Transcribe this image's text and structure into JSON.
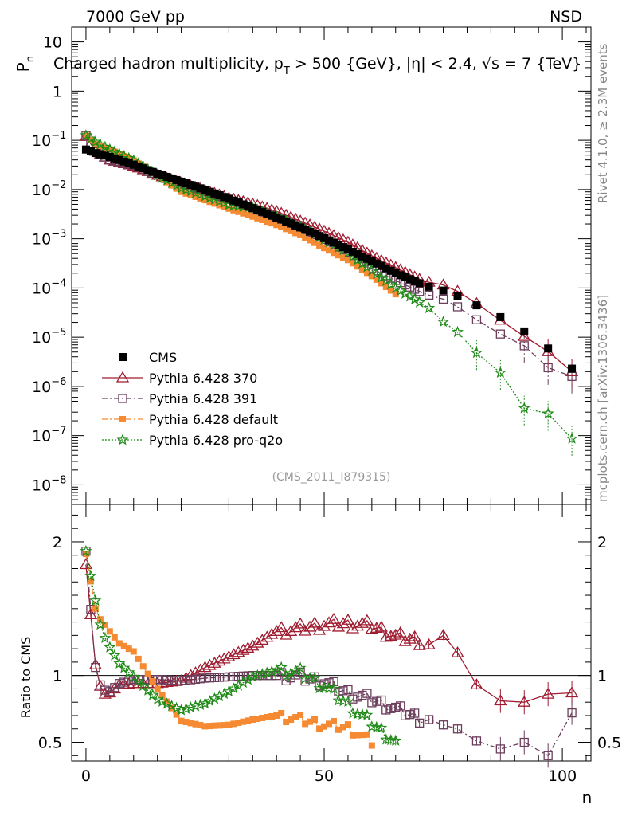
{
  "header": {
    "left": "7000 GeV pp",
    "right": "NSD"
  },
  "side": {
    "rivet": "Rivet 4.1.0, ≥ 2.3M events",
    "mcplots": "mcplots.cern.ch [arXiv:1306.3436]"
  },
  "colors": {
    "cms": "#000000",
    "p370": "#a01c30",
    "p391": "#6b3e5c",
    "default": "#f58a32",
    "proq2o": "#1e8a16"
  },
  "chart_data": [
    {
      "type": "scatter",
      "title": "Charged hadron multiplicity, p_T > 500 {GeV}, |η| < 2.4, √s = 7 {TeV}",
      "title_parts": {
        "pre": "Charged hadron multiplicity, p",
        "sub": "T",
        "post": " > 500 {GeV}, |η| < 2.4, √s = 7 {TeV}"
      },
      "ylabel": "P_n",
      "ylabel_parts": {
        "main": "P",
        "sub": "n"
      },
      "xlabel": "",
      "yscale": "log",
      "ylim": [
        4e-09,
        20
      ],
      "xlim": [
        -3,
        106
      ],
      "ytick_labels": [
        {
          "exp": -8,
          "label": "10",
          "sup": "−8"
        },
        {
          "exp": -7,
          "label": "10",
          "sup": "−7"
        },
        {
          "exp": -6,
          "label": "10",
          "sup": "−6"
        },
        {
          "exp": -5,
          "label": "10",
          "sup": "−5"
        },
        {
          "exp": -4,
          "label": "10",
          "sup": "−4"
        },
        {
          "exp": -3,
          "label": "10",
          "sup": "−3"
        },
        {
          "exp": -2,
          "label": "10",
          "sup": "−2"
        },
        {
          "exp": -1,
          "label": "10",
          "sup": "−1"
        },
        {
          "exp": 0,
          "label": "1",
          "sup": ""
        },
        {
          "exp": 1,
          "label": "10",
          "sup": ""
        }
      ],
      "annotation": "(CMS_2011_I879315)",
      "legend": {
        "position": "lower-left",
        "entries": [
          {
            "label": "CMS",
            "key": "cms"
          },
          {
            "label": "Pythia 6.428 370",
            "key": "p370"
          },
          {
            "label": "Pythia 6.428 391",
            "key": "p391"
          },
          {
            "label": "Pythia 6.428 default",
            "key": "default"
          },
          {
            "label": "Pythia 6.428 pro-q2o",
            "key": "proq2o"
          }
        ]
      },
      "anchor_x": [
        0,
        2,
        5,
        10,
        15,
        20,
        25,
        30,
        35,
        40,
        45,
        50,
        55,
        60,
        65,
        70,
        72,
        75,
        78,
        82,
        87,
        92,
        97,
        102
      ],
      "series": [
        {
          "name": "CMS",
          "key": "cms",
          "anchor_values": [
            0.065,
            0.055,
            0.046,
            0.032,
            0.021,
            0.0145,
            0.0098,
            0.0065,
            0.0042,
            0.0027,
            0.0017,
            0.00103,
            0.00061,
            0.00035,
            0.0002,
            0.000125,
            0.000106,
            8.86e-05,
            6.96e-05,
            4.45e-05,
            2.56e-05,
            1.31e-05,
            5.9e-06,
            2.3e-06
          ]
        },
        {
          "name": "Pythia 6.428 370",
          "key": "p370",
          "anchor_values": [
            0.12,
            0.06,
            0.04,
            0.03,
            0.0196,
            0.0135,
            0.0096,
            0.0067,
            0.0051,
            0.0036,
            0.00229,
            0.00143,
            0.00085,
            0.00045,
            0.00026,
            0.00015,
            0.000131,
            0.000115,
            8.55e-05,
            4.83e-05,
            2.22e-05,
            1.04e-05,
            5.1e-06,
            2e-06
          ]
        },
        {
          "name": "Pythia 6.428 391",
          "key": "p391",
          "anchor_values": [
            0.125,
            0.06,
            0.04,
            0.031,
            0.0197,
            0.0136,
            0.0093,
            0.0063,
            0.0041,
            0.0027,
            0.00168,
            0.00097,
            0.00053,
            0.00025,
            0.000142,
            8.5e-05,
            7.15e-05,
            5.93e-05,
            4.15e-05,
            2.26e-05,
            1.16e-05,
            6.7e-06,
            2.4e-06,
            1.6e-06
          ]
        },
        {
          "name": "Pythia 6.428 default",
          "key": "default",
          "anchor_values": [
            0.124,
            0.083,
            0.065,
            0.039,
            0.019,
            0.009,
            0.0061,
            0.0041,
            0.00283,
            0.00191,
            0.00119,
            0.00065,
            0.00037,
            0.000175,
            7.5e-05
          ]
        },
        {
          "name": "Pythia 6.428 pro-q2o",
          "key": "proq2o",
          "anchor_values": [
            0.126,
            0.093,
            0.065,
            0.039,
            0.0195,
            0.0107,
            0.0073,
            0.0049,
            0.0042,
            0.0028,
            0.00175,
            0.00096,
            0.00052,
            0.000225,
            0.0001,
            5.1e-05,
            3.9e-05,
            2.05e-05,
            1.27e-05,
            4.8e-06,
            1.9e-06,
            3.6e-07,
            2.8e-07,
            8.7e-08
          ]
        }
      ]
    },
    {
      "type": "scatter",
      "title": "",
      "xlabel": "n",
      "ylabel": "Ratio to CMS",
      "xlim": [
        -3,
        106
      ],
      "ylim": [
        0.36,
        2.28
      ],
      "xticks": [
        0,
        50,
        100
      ],
      "yticks": [
        0.5,
        1,
        2
      ],
      "reference_line": 1,
      "anchor_x": [
        0,
        2,
        3,
        4,
        5,
        7,
        10,
        15,
        20,
        25,
        30,
        35,
        40,
        45,
        50,
        55,
        60,
        65,
        70,
        72,
        75,
        78,
        82,
        87,
        92,
        97,
        102
      ],
      "series": [
        {
          "name": "Pythia 6.428 370",
          "key": "p370",
          "anchor_values": [
            1.83,
            1.08,
            0.92,
            0.86,
            0.87,
            0.93,
            0.94,
            0.94,
            0.96,
            1.06,
            1.14,
            1.22,
            1.33,
            1.35,
            1.38,
            1.39,
            1.37,
            1.29,
            1.26,
            1.23,
            1.3,
            1.17,
            0.93,
            0.81,
            0.8,
            0.86,
            0.87
          ]
        },
        {
          "name": "Pythia 6.428 391",
          "key": "p391",
          "anchor_values": [
            1.93,
            1.06,
            0.93,
            0.89,
            0.88,
            0.94,
            0.97,
            0.97,
            0.96,
            0.98,
            0.99,
            1.0,
            1.0,
            0.99,
            0.95,
            0.87,
            0.82,
            0.75,
            0.68,
            0.67,
            0.63,
            0.6,
            0.51,
            0.45,
            0.5,
            0.4,
            0.72
          ]
        },
        {
          "name": "Pythia 6.428 default",
          "key": "default",
          "anchor_values": [
            1.91,
            1.5,
            1.42,
            1.38,
            1.33,
            1.24,
            1.18,
            0.9,
            0.66,
            0.62,
            0.63,
            0.67,
            0.7,
            0.67,
            0.63,
            0.61,
            0.5,
            null,
            null,
            null,
            null,
            null,
            null,
            null,
            null,
            null,
            null
          ]
        },
        {
          "name": "Pythia 6.428 pro-q2o",
          "key": "proq2o",
          "anchor_values": [
            1.93,
            1.56,
            1.38,
            1.28,
            1.21,
            1.09,
            0.99,
            0.82,
            0.74,
            0.79,
            0.88,
            0.99,
            1.04,
            1.02,
            0.92,
            0.78,
            0.64,
            0.5,
            null,
            null,
            null,
            null,
            null,
            null,
            null,
            null,
            null
          ]
        }
      ]
    }
  ]
}
